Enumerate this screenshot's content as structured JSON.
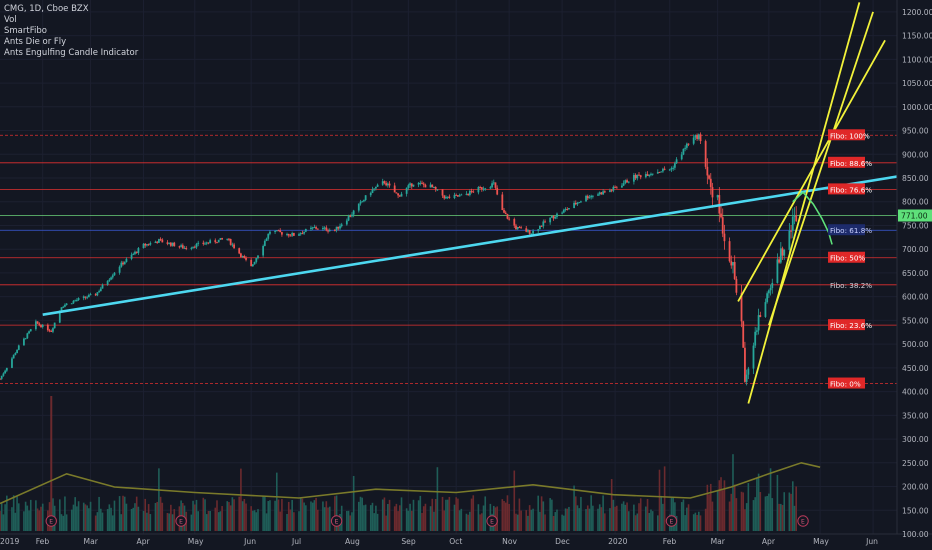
{
  "legend": {
    "symbol": "CMG, 1D, Cboe BZX",
    "indicators": [
      "Vol",
      "SmartFibo",
      "Ants Die or Fly",
      "Ants Engulfing Candle Indicator"
    ]
  },
  "colors": {
    "background": "#131722",
    "up": "#26a69a",
    "down": "#ef5350",
    "fibo_line": "#e03030",
    "trend_cyan": "#4dd8f0",
    "channel_yellow": "#f2f23a",
    "projection_green": "#5ee07a",
    "volume_ma": "#7a7a2a",
    "price_badge": "#5ee07a",
    "earnings_marker": "#b83a5a"
  },
  "price_badge": "771.00",
  "earnings_label": "E",
  "chart_data": {
    "type": "candlestick",
    "y_axis": {
      "min": 100,
      "max": 1225,
      "ticks": [
        100,
        150,
        200,
        250,
        300,
        350,
        400,
        450,
        500,
        550,
        600,
        650,
        700,
        750,
        800,
        850,
        900,
        950,
        1000,
        1050,
        1100,
        1150,
        1200
      ],
      "tick_labels": [
        "100.00",
        "150.00",
        "200.00",
        "250.00",
        "300.00",
        "350.00",
        "400.00",
        "450.00",
        "500.00",
        "550.00",
        "600.00",
        "650.00",
        "700.00",
        "750.00",
        "800.00",
        "850.00",
        "900.00",
        "950.00",
        "1000.00",
        "1050.00",
        "1100.00",
        "1150.00",
        "1200.00"
      ]
    },
    "x_axis": {
      "min": "2019-01-07",
      "max": "2020-06-15",
      "labels": [
        {
          "text": "2019",
          "date": "2019-01-02"
        },
        {
          "text": "Feb",
          "date": "2019-02-01"
        },
        {
          "text": "Mar",
          "date": "2019-03-01"
        },
        {
          "text": "Apr",
          "date": "2019-04-01"
        },
        {
          "text": "May",
          "date": "2019-05-01"
        },
        {
          "text": "Jun",
          "date": "2019-06-03"
        },
        {
          "text": "Jul",
          "date": "2019-07-01"
        },
        {
          "text": "Aug",
          "date": "2019-08-01"
        },
        {
          "text": "Sep",
          "date": "2019-09-03"
        },
        {
          "text": "Oct",
          "date": "2019-10-01"
        },
        {
          "text": "Nov",
          "date": "2019-11-01"
        },
        {
          "text": "Dec",
          "date": "2019-12-02"
        },
        {
          "text": "2020",
          "date": "2020-01-02"
        },
        {
          "text": "Feb",
          "date": "2020-02-03"
        },
        {
          "text": "Mar",
          "date": "2020-03-02"
        },
        {
          "text": "Apr",
          "date": "2020-04-01"
        },
        {
          "text": "May",
          "date": "2020-05-01"
        },
        {
          "text": "Jun",
          "date": "2020-06-01"
        }
      ]
    },
    "price_path": [
      [
        "2019-01-07",
        427
      ],
      [
        "2019-01-18",
        495
      ],
      [
        "2019-01-28",
        545
      ],
      [
        "2019-02-06",
        528
      ],
      [
        "2019-02-12",
        580
      ],
      [
        "2019-02-20",
        592
      ],
      [
        "2019-03-04",
        605
      ],
      [
        "2019-03-18",
        665
      ],
      [
        "2019-04-01",
        708
      ],
      [
        "2019-04-10",
        718
      ],
      [
        "2019-04-25",
        703
      ],
      [
        "2019-05-06",
        712
      ],
      [
        "2019-05-20",
        722
      ],
      [
        "2019-06-03",
        662
      ],
      [
        "2019-06-14",
        738
      ],
      [
        "2019-06-28",
        730
      ],
      [
        "2019-07-10",
        745
      ],
      [
        "2019-07-22",
        740
      ],
      [
        "2019-08-01",
        775
      ],
      [
        "2019-08-12",
        822
      ],
      [
        "2019-08-20",
        842
      ],
      [
        "2019-08-28",
        812
      ],
      [
        "2019-09-06",
        840
      ],
      [
        "2019-09-16",
        832
      ],
      [
        "2019-09-25",
        808
      ],
      [
        "2019-10-04",
        812
      ],
      [
        "2019-10-15",
        828
      ],
      [
        "2019-10-23",
        838
      ],
      [
        "2019-10-28",
        780
      ],
      [
        "2019-11-05",
        745
      ],
      [
        "2019-11-14",
        735
      ],
      [
        "2019-11-25",
        765
      ],
      [
        "2019-12-05",
        785
      ],
      [
        "2019-12-16",
        810
      ],
      [
        "2019-12-31",
        825
      ],
      [
        "2020-01-13",
        852
      ],
      [
        "2020-01-24",
        862
      ],
      [
        "2020-02-04",
        870
      ],
      [
        "2020-02-14",
        925
      ],
      [
        "2020-02-20",
        940
      ],
      [
        "2020-02-26",
        845
      ],
      [
        "2020-03-02",
        800
      ],
      [
        "2020-03-06",
        728
      ],
      [
        "2020-03-11",
        660
      ],
      [
        "2020-03-16",
        545
      ],
      [
        "2020-03-18",
        425
      ],
      [
        "2020-03-23",
        505
      ],
      [
        "2020-03-27",
        565
      ],
      [
        "2020-04-01",
        612
      ],
      [
        "2020-04-07",
        680
      ],
      [
        "2020-04-13",
        745
      ],
      [
        "2020-04-17",
        771
      ]
    ],
    "volume_ma_path": [
      [
        "2019-01-07",
        125
      ],
      [
        "2019-02-15",
        152
      ],
      [
        "2019-03-15",
        140
      ],
      [
        "2019-05-01",
        135
      ],
      [
        "2019-07-01",
        130
      ],
      [
        "2019-08-15",
        138
      ],
      [
        "2019-10-01",
        135
      ],
      [
        "2019-11-15",
        142
      ],
      [
        "2020-01-01",
        133
      ],
      [
        "2020-02-15",
        130
      ],
      [
        "2020-03-10",
        140
      ],
      [
        "2020-04-01",
        152
      ],
      [
        "2020-04-20",
        162
      ],
      [
        "2020-05-01",
        158
      ]
    ],
    "earnings_dates": [
      "2019-02-06",
      "2019-04-23",
      "2019-07-23",
      "2019-10-22",
      "2020-02-04",
      "2020-04-21"
    ],
    "fibo_levels": [
      {
        "label": "Fibo: 100%",
        "price": 940,
        "boxed": true
      },
      {
        "label": "Fibo: 88.6%",
        "price": 882,
        "boxed": true
      },
      {
        "label": "Fibo: 76.6%",
        "price": 826,
        "boxed": true
      },
      {
        "label": "Fibo: 61.8%",
        "price": 740,
        "boxed": false,
        "color": "#3b5bdb"
      },
      {
        "label": "Fibo:  50%",
        "price": 682,
        "boxed": true
      },
      {
        "label": "Fibo: 38.2%",
        "price": 625,
        "boxed": false
      },
      {
        "label": "Fibo: 23.6%",
        "price": 540,
        "boxed": true
      },
      {
        "label": "Fibo:   0%",
        "price": 417,
        "boxed": true
      }
    ],
    "horizontal_level": 771,
    "trend_line": {
      "from": [
        "2019-02-01",
        562
      ],
      "to": [
        "2020-06-15",
        853
      ]
    },
    "channel_lines": [
      {
        "from": [
          "2020-03-14",
          590
        ],
        "to": [
          "2020-06-08",
          1140
        ]
      },
      {
        "from": [
          "2020-03-20",
          375
        ],
        "to": [
          "2020-05-24",
          1220
        ]
      },
      {
        "from": [
          "2020-04-01",
          540
        ],
        "to": [
          "2020-06-01",
          1200
        ]
      }
    ],
    "projection_path": [
      [
        "2020-04-15",
        800
      ],
      [
        "2020-04-21",
        820
      ],
      [
        "2020-04-27",
        795
      ],
      [
        "2020-05-02",
        765
      ],
      [
        "2020-05-06",
        735
      ],
      [
        "2020-05-08",
        710
      ]
    ]
  }
}
